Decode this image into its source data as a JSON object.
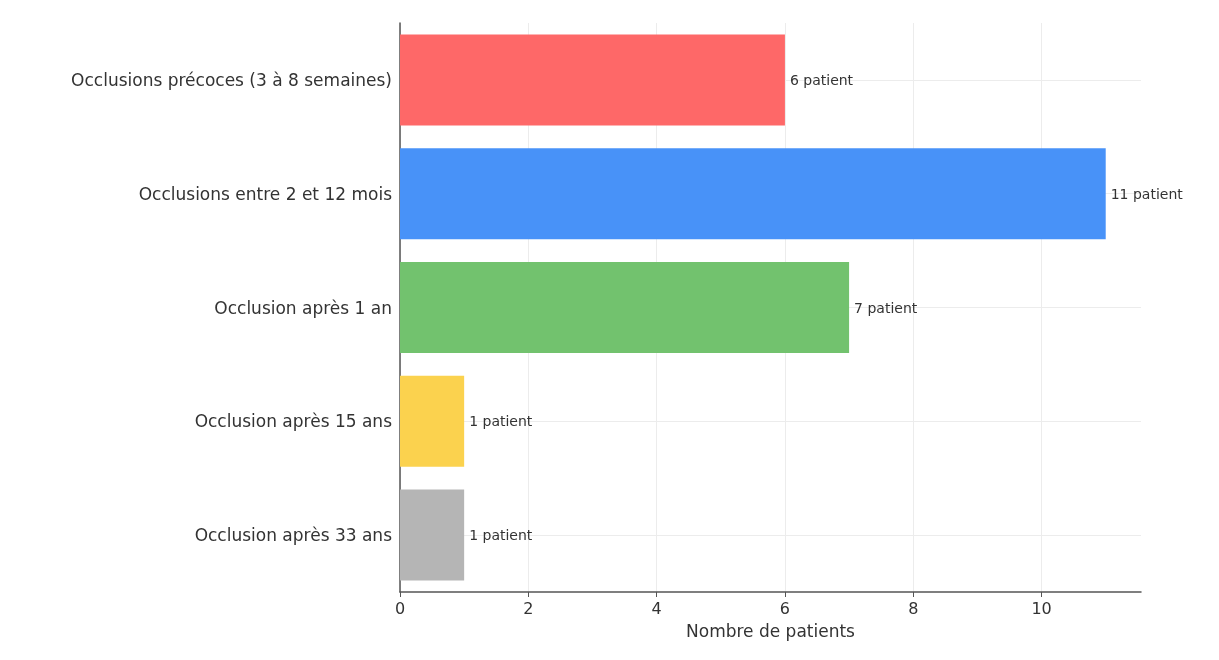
{
  "chart_data": {
    "type": "bar",
    "orientation": "horizontal",
    "xlabel": "Nombre de patients",
    "categories": [
      "Occlusions précoces (3 à 8 semaines)",
      "Occlusions entre 2 et 12 mois",
      "Occlusion après 1 an",
      "Occlusion après 15 ans",
      "Occlusion après 33 ans"
    ],
    "values": [
      6,
      11,
      7,
      1,
      1
    ],
    "colors": [
      "#fe6868",
      "#4892f8",
      "#72c26e",
      "#fbd24e",
      "#b5b5b5"
    ],
    "value_labels": [
      "6 patient",
      "11 patient",
      "7 patient",
      "1 patient",
      "1 patient"
    ],
    "xlim": [
      0,
      11.55
    ],
    "xticks": [
      0,
      2,
      4,
      6,
      8,
      10
    ],
    "grid": true
  }
}
